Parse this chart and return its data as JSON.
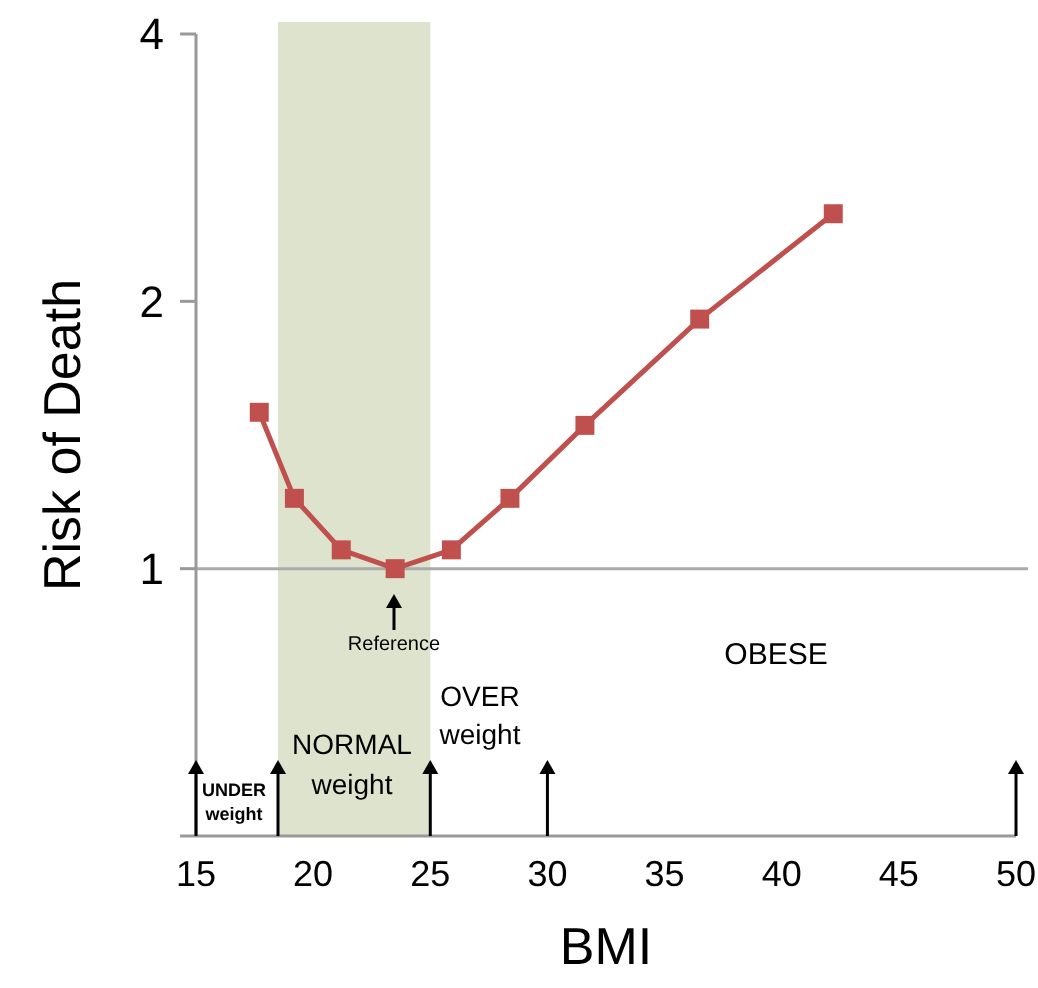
{
  "chart_data": {
    "type": "line",
    "xlabel": "BMI",
    "ylabel": "Risk of Death",
    "x": [
      17.7,
      19.2,
      21.2,
      23.5,
      25.9,
      28.4,
      31.6,
      36.5,
      42.2
    ],
    "series": [
      {
        "color": "#c0504d",
        "values": [
          1.5,
          1.2,
          1.05,
          1.0,
          1.05,
          1.2,
          1.45,
          1.91,
          2.51
        ]
      }
    ],
    "xlim": [
      15,
      50
    ],
    "xticks": [
      15,
      20,
      25,
      30,
      35,
      40,
      45,
      50
    ],
    "ylim": [
      0.5,
      4
    ],
    "yticks": [
      {
        "value": 0.5,
        "label": null
      },
      1,
      2,
      4
    ],
    "log": "y",
    "marker": "square",
    "grid": false,
    "ref_lines": [
      {
        "axis": "y",
        "value": 1,
        "color": "#aaaaaa"
      }
    ],
    "bands": [
      {
        "axis": "x",
        "from": 18.5,
        "to": 25,
        "color": "#dde3cd"
      }
    ],
    "annotations": [
      "Reference",
      "UNDER\nweight",
      "NORMAL\nweight",
      "OVER\nweight",
      "OBESE"
    ]
  }
}
